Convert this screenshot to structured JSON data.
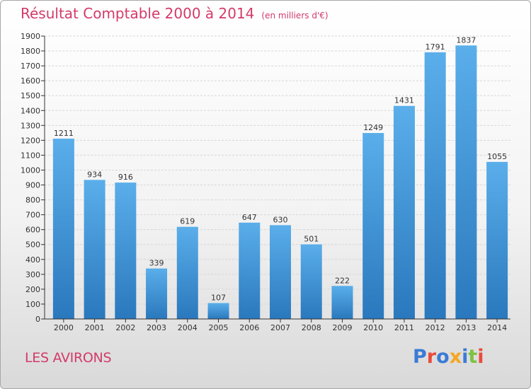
{
  "title": "Résultat Comptable 2000 à 2014",
  "unit": "(en milliers d'€)",
  "place": "LES AVIRONS",
  "logo": {
    "text": "Proxiti",
    "letter_colors": [
      "#3a7bd5",
      "#e94b3c",
      "#3a7bd5",
      "#f5a623",
      "#3a7bd5",
      "#7cc242",
      "#e94b3c"
    ]
  },
  "colors": {
    "title": "#d33a6a",
    "bar_top": "#5aaeea",
    "bar_bottom": "#2a78bd",
    "grid": "#d7d7d7",
    "axis": "#333333"
  },
  "chart_data": {
    "type": "bar",
    "categories": [
      "2000",
      "2001",
      "2002",
      "2003",
      "2004",
      "2005",
      "2006",
      "2007",
      "2008",
      "2009",
      "2010",
      "2011",
      "2012",
      "2013",
      "2014"
    ],
    "values": [
      1211,
      934,
      916,
      339,
      619,
      107,
      647,
      630,
      501,
      222,
      1249,
      1431,
      1791,
      1837,
      1055
    ],
    "title": "Résultat Comptable 2000 à 2014",
    "ylim": [
      0,
      1900
    ],
    "yticks": [
      0,
      100,
      200,
      300,
      400,
      500,
      600,
      700,
      800,
      900,
      1000,
      1100,
      1200,
      1300,
      1400,
      1500,
      1600,
      1700,
      1800,
      1900
    ],
    "grid": true
  }
}
